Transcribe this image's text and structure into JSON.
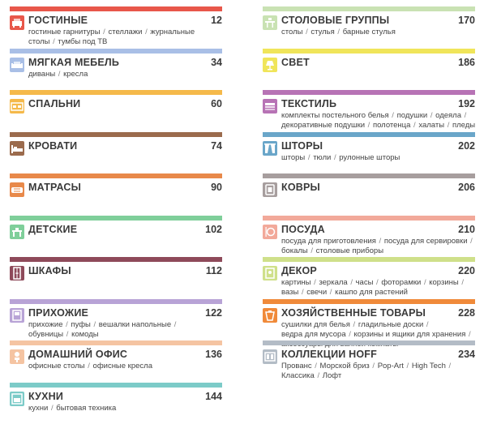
{
  "left": [
    {
      "title": "ГОСТИНЫЕ",
      "count": "12",
      "color": "#e8574a",
      "icon": "living-room-icon",
      "sub": [
        [
          "гостиные гарнитуры",
          "стеллажи",
          "журнальные"
        ],
        [
          "столы",
          "тумбы под ТВ"
        ]
      ]
    },
    {
      "title": "МЯГКАЯ МЕБЕЛЬ",
      "count": "34",
      "color": "#a9bfe6",
      "icon": "sofa-icon",
      "sub": [
        [
          "диваны",
          "кресла"
        ]
      ]
    },
    {
      "title": "СПАЛЬНИ",
      "count": "60",
      "color": "#f5b94a",
      "icon": "bedroom-icon",
      "sub": []
    },
    {
      "title": "КРОВАТИ",
      "count": "74",
      "color": "#9b6b4d",
      "icon": "bed-icon",
      "sub": []
    },
    {
      "title": "МАТРАСЫ",
      "count": "90",
      "color": "#e8894a",
      "icon": "mattress-icon",
      "sub": []
    },
    {
      "title": "ДЕТСКИЕ",
      "count": "102",
      "color": "#7fcf9a",
      "icon": "kids-desk-icon",
      "sub": []
    },
    {
      "title": "ШКАФЫ",
      "count": "112",
      "color": "#8e4a5a",
      "icon": "wardrobe-icon",
      "sub": []
    },
    {
      "title": "ПРИХОЖИЕ",
      "count": "122",
      "color": "#b8a3d6",
      "icon": "hallway-icon",
      "sub": [
        [
          "прихожие",
          "пуфы",
          "вешалки напольные",
          ""
        ],
        [
          "обувницы",
          "комоды"
        ]
      ]
    },
    {
      "title": "ДОМАШНИЙ ОФИС",
      "count": "136",
      "color": "#f5c4a2",
      "icon": "office-chair-icon",
      "sub": [
        [
          "офисные столы",
          "офисные кресла"
        ]
      ]
    },
    {
      "title": "КУХНИ",
      "count": "144",
      "color": "#7ccbc8",
      "icon": "kitchen-icon",
      "sub": [
        [
          "кухни",
          "бытовая техника"
        ]
      ]
    }
  ],
  "right": [
    {
      "title": "СТОЛОВЫЕ ГРУППЫ",
      "count": "170",
      "color": "#c9e2b3",
      "icon": "dining-group-icon",
      "sub": [
        [
          "столы",
          "стулья",
          "барные стулья"
        ]
      ]
    },
    {
      "title": "СВЕТ",
      "count": "186",
      "color": "#f0e55a",
      "icon": "lamp-icon",
      "sub": []
    },
    {
      "title": "ТЕКСТИЛЬ",
      "count": "192",
      "color": "#b773b5",
      "icon": "textile-icon",
      "sub": [
        [
          "комплекты постельного белья",
          "подушки",
          "одеяла",
          ""
        ],
        [
          "декоративные подушки",
          "полотенца",
          "халаты",
          "пледы"
        ]
      ]
    },
    {
      "title": "ШТОРЫ",
      "count": "202",
      "color": "#6aa6c9",
      "icon": "curtains-icon",
      "sub": [
        [
          "шторы",
          "тюли",
          "рулонные шторы"
        ]
      ]
    },
    {
      "title": "КОВРЫ",
      "count": "206",
      "color": "#a79e9e",
      "icon": "carpet-icon",
      "sub": []
    },
    {
      "title": "ПОСУДА",
      "count": "210",
      "color": "#f2a99a",
      "icon": "tableware-icon",
      "sub": [
        [
          "посуда для приготовления",
          "посуда для сервировки",
          ""
        ],
        [
          "бокалы",
          "столовые приборы"
        ]
      ]
    },
    {
      "title": "ДЕКОР",
      "count": "220",
      "color": "#cfe08a",
      "icon": "decor-icon",
      "sub": [
        [
          "картины",
          "зеркала",
          "часы",
          "фоторамки",
          "корзины",
          ""
        ],
        [
          "вазы",
          "свечи",
          "кашпо для растений"
        ]
      ]
    },
    {
      "title": "ХОЗЯЙСТВЕННЫЕ ТОВАРЫ",
      "count": "228",
      "color": "#f08a3a",
      "icon": "household-icon",
      "sub": [
        [
          "сушилки для белья",
          "гладильные доски",
          ""
        ],
        [
          "ведра для мусора",
          "корзины и ящики для хранения",
          ""
        ],
        [
          "аксессуары для ванной комнаты"
        ]
      ]
    },
    {
      "title": "КОЛЛЕКЦИИ HOFF",
      "count": "234",
      "color": "#b3bcc6",
      "icon": "collections-icon",
      "sub": [
        [
          "Прованс",
          "Морской бриз",
          "Pop-Art",
          "High Tech",
          ""
        ],
        [
          "Классика",
          "Лофт"
        ]
      ]
    }
  ]
}
